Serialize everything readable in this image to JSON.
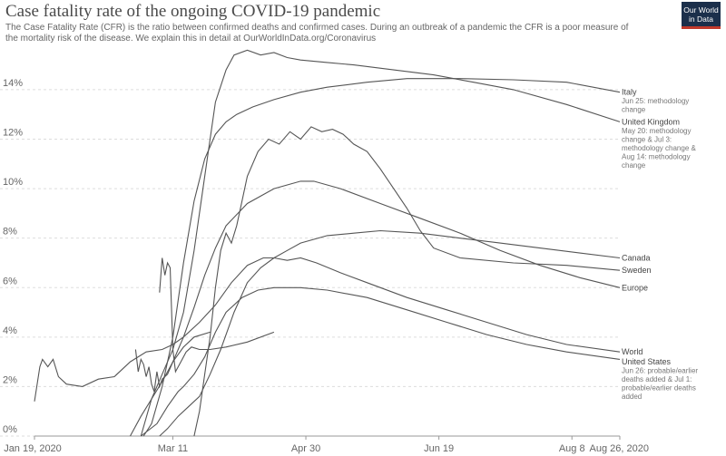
{
  "header": {
    "title": "Case fatality rate of the ongoing COVID-19 pandemic",
    "subtitle": "The Case Fatality Rate (CFR) is the ratio between confirmed deaths and confirmed cases. During an outbreak of a pandemic the CFR is a poor measure of the mortality risk of the disease. We explain this in detail at OurWorldInData.org/Coronavirus",
    "logo_line1": "Our World",
    "logo_line2": "in Data"
  },
  "colors": {
    "line": "#555555",
    "grid": "#dddddd",
    "text": "#666666",
    "logo_bg": "#1b2f4b",
    "logo_accent": "#c0392b"
  },
  "chart_data": {
    "type": "line",
    "title": "Case fatality rate of the ongoing COVID-19 pandemic",
    "xlabel": "",
    "ylabel": "",
    "x_ticks": [
      "Jan 19, 2020",
      "Mar 11",
      "Apr 30",
      "Jun 19",
      "Aug 8",
      "Aug 26, 2020"
    ],
    "x_tick_days": [
      0,
      52,
      102,
      152,
      202,
      220
    ],
    "x_range": [
      "Jan 19, 2020",
      "Aug 26, 2020"
    ],
    "ylim": [
      0,
      15.5
    ],
    "y_ticks": [
      0,
      2,
      4,
      6,
      8,
      10,
      12,
      14
    ],
    "y_tick_labels": [
      "0%",
      "2%",
      "4%",
      "6%",
      "8%",
      "10%",
      "12%",
      "14%"
    ],
    "grid": true,
    "legend": "right end labels",
    "series": [
      {
        "name": "Italy",
        "note": [
          "Jun 25: methodology",
          "change"
        ],
        "points": [
          [
            41,
            0
          ],
          [
            44,
            0.5
          ],
          [
            48,
            2.0
          ],
          [
            52,
            4.0
          ],
          [
            56,
            7.0
          ],
          [
            60,
            9.5
          ],
          [
            64,
            11.2
          ],
          [
            68,
            12.2
          ],
          [
            72,
            12.7
          ],
          [
            76,
            13.0
          ],
          [
            82,
            13.3
          ],
          [
            90,
            13.6
          ],
          [
            100,
            13.9
          ],
          [
            110,
            14.1
          ],
          [
            125,
            14.3
          ],
          [
            140,
            14.45
          ],
          [
            160,
            14.45
          ],
          [
            180,
            14.4
          ],
          [
            200,
            14.3
          ],
          [
            220,
            13.9
          ]
        ]
      },
      {
        "name": "United Kingdom",
        "note": [
          "May 20: methodology",
          "change & Jul 3:",
          "methodology change &",
          "Aug 14: methodology",
          "change"
        ],
        "points": [
          [
            40,
            0
          ],
          [
            44,
            1.5
          ],
          [
            48,
            2.5
          ],
          [
            52,
            3.5
          ],
          [
            56,
            5.0
          ],
          [
            60,
            7.5
          ],
          [
            64,
            10.5
          ],
          [
            68,
            13.5
          ],
          [
            72,
            14.8
          ],
          [
            75,
            15.4
          ],
          [
            80,
            15.6
          ],
          [
            85,
            15.4
          ],
          [
            90,
            15.5
          ],
          [
            95,
            15.3
          ],
          [
            100,
            15.2
          ],
          [
            110,
            15.1
          ],
          [
            120,
            15.0
          ],
          [
            135,
            14.8
          ],
          [
            150,
            14.6
          ],
          [
            165,
            14.3
          ],
          [
            180,
            14.0
          ],
          [
            200,
            13.4
          ],
          [
            220,
            12.7
          ]
        ]
      },
      {
        "name": "Canada",
        "points": [
          [
            47,
            0
          ],
          [
            50,
            0.3
          ],
          [
            54,
            0.8
          ],
          [
            58,
            1.2
          ],
          [
            62,
            1.6
          ],
          [
            66,
            2.5
          ],
          [
            70,
            3.5
          ],
          [
            75,
            5.0
          ],
          [
            80,
            6.2
          ],
          [
            85,
            6.8
          ],
          [
            90,
            7.2
          ],
          [
            95,
            7.5
          ],
          [
            100,
            7.8
          ],
          [
            110,
            8.1
          ],
          [
            120,
            8.2
          ],
          [
            130,
            8.3
          ],
          [
            145,
            8.2
          ],
          [
            160,
            8.0
          ],
          [
            175,
            7.8
          ],
          [
            190,
            7.6
          ],
          [
            205,
            7.4
          ],
          [
            220,
            7.2
          ]
        ]
      },
      {
        "name": "Sweden",
        "points": [
          [
            60,
            0
          ],
          [
            62,
            1.0
          ],
          [
            64,
            2.5
          ],
          [
            66,
            4.0
          ],
          [
            68,
            6.0
          ],
          [
            70,
            7.5
          ],
          [
            72,
            8.2
          ],
          [
            74,
            7.8
          ],
          [
            76,
            8.5
          ],
          [
            78,
            9.5
          ],
          [
            80,
            10.5
          ],
          [
            84,
            11.5
          ],
          [
            88,
            12.0
          ],
          [
            92,
            11.8
          ],
          [
            96,
            12.3
          ],
          [
            100,
            12.0
          ],
          [
            104,
            12.5
          ],
          [
            108,
            12.3
          ],
          [
            112,
            12.4
          ],
          [
            116,
            12.2
          ],
          [
            120,
            11.8
          ],
          [
            125,
            11.5
          ],
          [
            130,
            10.8
          ],
          [
            135,
            10.0
          ],
          [
            140,
            9.2
          ],
          [
            145,
            8.3
          ],
          [
            150,
            7.6
          ],
          [
            160,
            7.2
          ],
          [
            180,
            7.0
          ],
          [
            200,
            6.9
          ],
          [
            220,
            6.7
          ]
        ]
      },
      {
        "name": "Europe",
        "points": [
          [
            36,
            0
          ],
          [
            40,
            0.8
          ],
          [
            44,
            1.5
          ],
          [
            48,
            2.2
          ],
          [
            52,
            3.0
          ],
          [
            56,
            4.0
          ],
          [
            60,
            5.2
          ],
          [
            64,
            6.5
          ],
          [
            68,
            7.6
          ],
          [
            72,
            8.5
          ],
          [
            80,
            9.4
          ],
          [
            90,
            10.0
          ],
          [
            100,
            10.3
          ],
          [
            105,
            10.3
          ],
          [
            115,
            10.0
          ],
          [
            130,
            9.4
          ],
          [
            145,
            8.8
          ],
          [
            160,
            8.2
          ],
          [
            175,
            7.5
          ],
          [
            190,
            6.9
          ],
          [
            205,
            6.4
          ],
          [
            220,
            6.0
          ]
        ]
      },
      {
        "name": "World",
        "points": [
          [
            0,
            1.4
          ],
          [
            2,
            2.8
          ],
          [
            3,
            3.1
          ],
          [
            5,
            2.8
          ],
          [
            7,
            3.1
          ],
          [
            9,
            2.4
          ],
          [
            12,
            2.1
          ],
          [
            18,
            2.0
          ],
          [
            24,
            2.3
          ],
          [
            30,
            2.4
          ],
          [
            36,
            3.0
          ],
          [
            42,
            3.4
          ],
          [
            48,
            3.5
          ],
          [
            52,
            3.7
          ],
          [
            56,
            4.0
          ],
          [
            62,
            4.6
          ],
          [
            68,
            5.3
          ],
          [
            74,
            6.2
          ],
          [
            80,
            6.9
          ],
          [
            86,
            7.2
          ],
          [
            90,
            7.2
          ],
          [
            95,
            7.1
          ],
          [
            100,
            7.2
          ],
          [
            106,
            7.0
          ],
          [
            115,
            6.6
          ],
          [
            125,
            6.2
          ],
          [
            140,
            5.6
          ],
          [
            155,
            5.1
          ],
          [
            170,
            4.6
          ],
          [
            185,
            4.1
          ],
          [
            200,
            3.7
          ],
          [
            220,
            3.4
          ]
        ]
      },
      {
        "name": "United States",
        "note": [
          "Jun 26: probable/earlier",
          "deaths added & Jul 1:",
          "probable/earlier deaths",
          "added"
        ],
        "points": [
          [
            40,
            0
          ],
          [
            46,
            0.5
          ],
          [
            50,
            1.2
          ],
          [
            54,
            1.8
          ],
          [
            56,
            2.0
          ],
          [
            60,
            2.5
          ],
          [
            64,
            3.2
          ],
          [
            68,
            4.2
          ],
          [
            72,
            5.0
          ],
          [
            78,
            5.6
          ],
          [
            84,
            5.9
          ],
          [
            90,
            6.0
          ],
          [
            96,
            6.0
          ],
          [
            100,
            6.0
          ],
          [
            110,
            5.9
          ],
          [
            125,
            5.6
          ],
          [
            140,
            5.1
          ],
          [
            155,
            4.6
          ],
          [
            170,
            4.1
          ],
          [
            185,
            3.7
          ],
          [
            200,
            3.4
          ],
          [
            220,
            3.1
          ]
        ]
      },
      {
        "name": "",
        "points": [
          [
            47,
            5.8
          ],
          [
            48,
            7.2
          ],
          [
            49,
            6.5
          ],
          [
            50,
            7.0
          ],
          [
            51,
            6.8
          ],
          [
            52,
            3.5
          ],
          [
            53,
            2.6
          ],
          [
            55,
            3.0
          ],
          [
            57,
            3.4
          ],
          [
            59,
            3.6
          ],
          [
            62,
            3.5
          ],
          [
            66,
            3.5
          ],
          [
            72,
            3.6
          ],
          [
            80,
            3.8
          ],
          [
            90,
            4.2
          ]
        ]
      },
      {
        "name": "",
        "points": [
          [
            38,
            3.5
          ],
          [
            39,
            2.6
          ],
          [
            40,
            3.1
          ],
          [
            41,
            2.9
          ],
          [
            42,
            2.4
          ],
          [
            43,
            2.8
          ],
          [
            44,
            2.1
          ],
          [
            45,
            1.8
          ],
          [
            46,
            2.6
          ],
          [
            47,
            2.0
          ],
          [
            48,
            2.3
          ],
          [
            50,
            2.5
          ],
          [
            52,
            3.0
          ],
          [
            56,
            3.6
          ],
          [
            60,
            4.0
          ],
          [
            66,
            4.2
          ]
        ]
      }
    ]
  }
}
